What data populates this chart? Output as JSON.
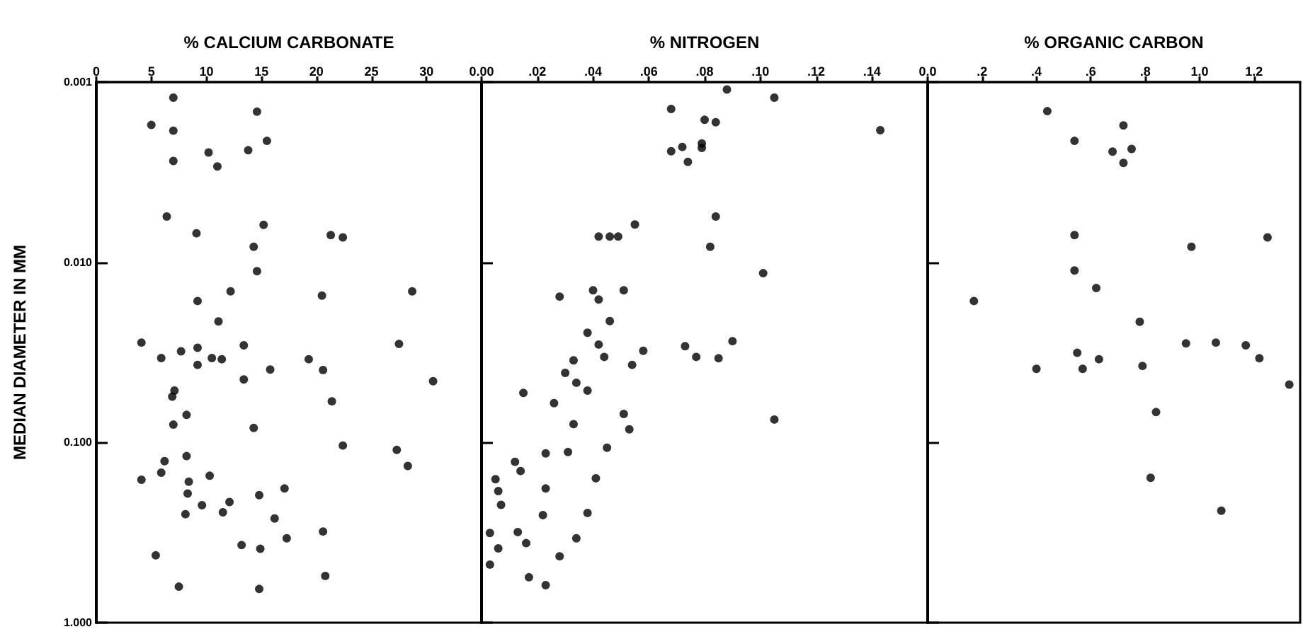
{
  "chart_data": [
    {
      "type": "scatter",
      "xlabel": "% CALCIUM CARBONATE",
      "ylabel": "MEDIAN DIAMETER IN MM",
      "color": "#000000",
      "marker": "circle",
      "log": "y",
      "xlim": [
        0,
        35
      ],
      "xticks": [
        0,
        5,
        10,
        15,
        20,
        25,
        30
      ],
      "ylim": [
        1,
        0.001
      ],
      "yticks": [
        {
          "value": 0.001,
          "label": "0.001"
        },
        {
          "value": 0.01,
          "label": "0.010"
        },
        {
          "value": 0.1,
          "label": "0.100"
        },
        {
          "value": 1,
          "label": "1.000"
        }
      ],
      "x": [
        7.0,
        14.6,
        5.0,
        7.0,
        15.5,
        13.8,
        10.2,
        7.0,
        11.0,
        6.4,
        9.1,
        15.2,
        21.3,
        22.4,
        14.3,
        14.6,
        12.2,
        20.5,
        28.7,
        9.2,
        11.1,
        4.1,
        7.7,
        9.2,
        13.4,
        5.9,
        10.5,
        11.4,
        9.2,
        19.3,
        27.5,
        15.8,
        20.6,
        13.4,
        30.6,
        7.1,
        6.9,
        8.2,
        21.4,
        7.0,
        14.3,
        22.4,
        27.3,
        8.2,
        6.2,
        28.3,
        4.1,
        5.9,
        10.3,
        8.4,
        17.1,
        8.3,
        14.8,
        12.1,
        9.6,
        8.1,
        11.5,
        16.2,
        20.6,
        17.3,
        13.2,
        14.9,
        5.4,
        20.8,
        7.5,
        14.8
      ],
      "values": [
        0.00122,
        0.00146,
        0.00173,
        0.00186,
        0.00212,
        0.00239,
        0.00246,
        0.00274,
        0.00294,
        0.00557,
        0.0069,
        0.0062,
        0.00707,
        0.00728,
        0.0082,
        0.0112,
        0.0145,
        0.0153,
        0.0145,
        0.0164,
        0.0213,
        0.0279,
        0.0312,
        0.0298,
        0.0289,
        0.034,
        0.034,
        0.0345,
        0.0371,
        0.0345,
        0.0284,
        0.0394,
        0.0396,
        0.0447,
        0.0457,
        0.0515,
        0.0557,
        0.0703,
        0.0591,
        0.0796,
        0.083,
        0.104,
        0.11,
        0.119,
        0.127,
        0.135,
        0.161,
        0.147,
        0.153,
        0.165,
        0.18,
        0.192,
        0.196,
        0.214,
        0.223,
        0.25,
        0.244,
        0.264,
        0.312,
        0.34,
        0.371,
        0.389,
        0.423,
        0.55,
        0.631,
        0.65
      ]
    },
    {
      "type": "scatter",
      "xlabel": "% NITROGEN",
      "color": "#000000",
      "marker": "circle",
      "log": "y",
      "tick_labels": "x",
      "xlim": [
        0,
        0.16
      ],
      "xticks": [
        {
          "value": 0,
          "label": "0.00"
        },
        {
          "value": 0.02,
          "label": ".02"
        },
        {
          "value": 0.04,
          "label": ".04"
        },
        {
          "value": 0.06,
          "label": ".06"
        },
        {
          "value": 0.08,
          "label": ".08"
        },
        {
          "value": 0.1,
          "label": ".10"
        },
        {
          "value": 0.12,
          "label": ".12"
        },
        {
          "value": 0.14,
          "label": ".14"
        }
      ],
      "ylim": [
        1,
        0.001
      ],
      "yticks": [
        0.001,
        0.01,
        0.1,
        1
      ],
      "x": [
        0.068,
        0.105,
        0.088,
        0.143,
        0.08,
        0.084,
        0.068,
        0.072,
        0.079,
        0.079,
        0.074,
        0.084,
        0.055,
        0.042,
        0.046,
        0.049,
        0.082,
        0.101,
        0.028,
        0.04,
        0.042,
        0.051,
        0.046,
        0.038,
        0.042,
        0.044,
        0.058,
        0.054,
        0.073,
        0.077,
        0.085,
        0.09,
        0.033,
        0.03,
        0.034,
        0.038,
        0.015,
        0.026,
        0.051,
        0.053,
        0.033,
        0.105,
        0.045,
        0.031,
        0.023,
        0.012,
        0.014,
        0.041,
        0.023,
        0.005,
        0.006,
        0.007,
        0.022,
        0.038,
        0.003,
        0.013,
        0.016,
        0.006,
        0.034,
        0.028,
        0.003,
        0.017,
        0.023
      ],
      "values": [
        0.00141,
        0.00122,
        0.0011,
        0.00185,
        0.00162,
        0.00167,
        0.00242,
        0.00229,
        0.00219,
        0.00232,
        0.00277,
        0.00557,
        0.00617,
        0.0072,
        0.0072,
        0.0072,
        0.0082,
        0.0115,
        0.0155,
        0.0143,
        0.0161,
        0.0143,
        0.0212,
        0.0246,
        0.0286,
        0.0335,
        0.031,
        0.0371,
        0.0292,
        0.0335,
        0.0341,
        0.0274,
        0.035,
        0.0411,
        0.0466,
        0.0515,
        0.0531,
        0.0605,
        0.0694,
        0.0845,
        0.0791,
        0.0746,
        0.107,
        0.113,
        0.115,
        0.128,
        0.144,
        0.158,
        0.18,
        0.16,
        0.186,
        0.222,
        0.253,
        0.246,
        0.318,
        0.314,
        0.362,
        0.387,
        0.34,
        0.428,
        0.476,
        0.56,
        0.619
      ]
    },
    {
      "type": "scatter",
      "xlabel": "% ORGANIC CARBON",
      "color": "#000000",
      "marker": "circle",
      "log": "y",
      "tick_labels": "x",
      "xlim": [
        0,
        1.37
      ],
      "xticks": [
        {
          "value": 0,
          "label": "0.0"
        },
        {
          "value": 0.2,
          "label": ".2"
        },
        {
          "value": 0.4,
          "label": ".4"
        },
        {
          "value": 0.6,
          "label": ".6"
        },
        {
          "value": 0.8,
          "label": ".8"
        },
        {
          "value": 1,
          "label": "1.0"
        },
        {
          "value": 1.2,
          "label": "1.2"
        }
      ],
      "ylim": [
        1,
        0.001
      ],
      "yticks": [
        0.001,
        0.01,
        0.1,
        1
      ],
      "x": [
        0.44,
        0.72,
        0.54,
        0.68,
        0.75,
        0.72,
        0.54,
        0.97,
        1.25,
        0.54,
        0.62,
        0.17,
        0.78,
        0.95,
        1.06,
        1.17,
        1.22,
        0.55,
        0.63,
        0.57,
        0.4,
        0.79,
        1.33,
        0.84,
        0.82,
        1.08
      ],
      "values": [
        0.00145,
        0.00174,
        0.00212,
        0.00243,
        0.00235,
        0.00281,
        0.00707,
        0.0082,
        0.00728,
        0.0111,
        0.0139,
        0.0164,
        0.0214,
        0.0282,
        0.0279,
        0.0289,
        0.0341,
        0.0318,
        0.0345,
        0.039,
        0.039,
        0.0376,
        0.0477,
        0.0678,
        0.157,
        0.239
      ]
    }
  ]
}
